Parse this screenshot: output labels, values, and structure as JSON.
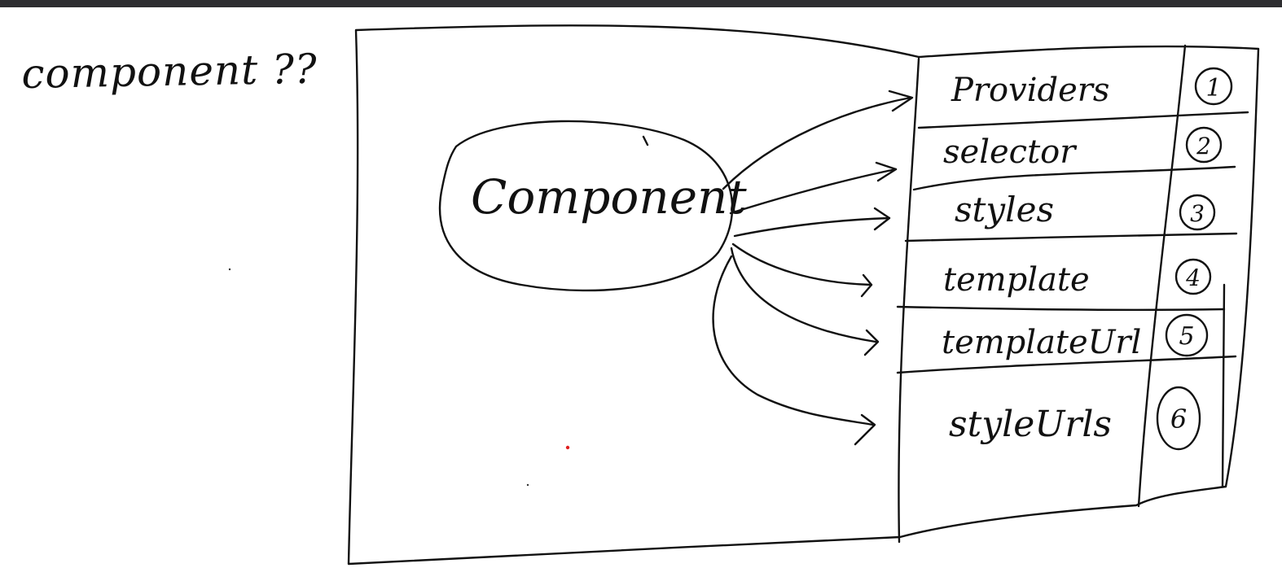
{
  "page": {
    "title": "component ??"
  },
  "diagram": {
    "center_label": "Component",
    "properties": [
      {
        "label": "Providers",
        "number": "1"
      },
      {
        "label": "selector",
        "number": "2"
      },
      {
        "label": "styles",
        "number": "3"
      },
      {
        "label": "template",
        "number": "4"
      },
      {
        "label": "templateUrl",
        "number": "5"
      },
      {
        "label": "styleUrls",
        "number": "6"
      }
    ]
  },
  "colors": {
    "ink": "#111111",
    "background": "#ffffff",
    "toolbar": "#2d2d30",
    "stray_dot": "#e02020"
  }
}
